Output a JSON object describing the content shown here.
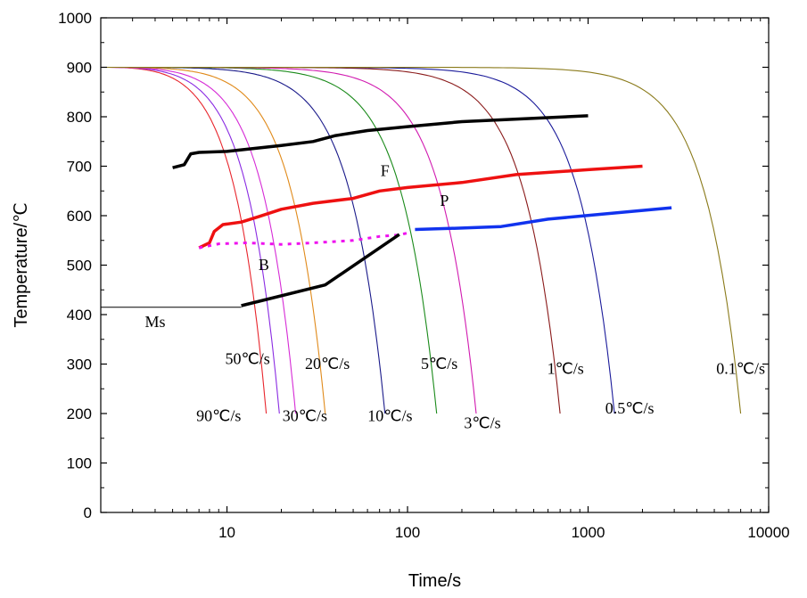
{
  "chart_data": {
    "type": "line",
    "xlabel": "Time/s",
    "ylabel": "Temperature/℃",
    "xscale": "log",
    "xlim": [
      2,
      10000
    ],
    "ylim": [
      0,
      1000
    ],
    "x_ticks": [
      10,
      100,
      1000,
      10000
    ],
    "x_tick_labels": [
      "10",
      "100",
      "1000",
      "10000"
    ],
    "y_ticks": [
      0,
      100,
      200,
      300,
      400,
      500,
      600,
      700,
      800,
      900,
      1000
    ],
    "y_tick_labels": [
      "0",
      "100",
      "200",
      "300",
      "400",
      "500",
      "600",
      "700",
      "800",
      "900",
      "1000"
    ],
    "grid": false,
    "cooling_curves": [
      {
        "name": "90℃/s",
        "color": "#e8262d",
        "end_x": 16.5,
        "end_y": 200
      },
      {
        "name": "50℃/s",
        "color": "#8a2be2",
        "end_x": 19.5,
        "end_y": 200
      },
      {
        "name": "30℃/s",
        "color": "#d62bd6",
        "end_x": 24,
        "end_y": 200
      },
      {
        "name": "20℃/s",
        "color": "#e08a1a",
        "end_x": 35,
        "end_y": 200
      },
      {
        "name": "10℃/s",
        "color": "#1a1a8a",
        "end_x": 75,
        "end_y": 200
      },
      {
        "name": "5℃/s",
        "color": "#1a8a1a",
        "end_x": 145,
        "end_y": 200
      },
      {
        "name": "3℃/s",
        "color": "#d11ab0",
        "end_x": 240,
        "end_y": 200
      },
      {
        "name": "1℃/s",
        "color": "#8a1a1a",
        "end_x": 700,
        "end_y": 200
      },
      {
        "name": "0.5℃/s",
        "color": "#1a1a9a",
        "end_x": 1400,
        "end_y": 200
      },
      {
        "name": "0.1℃/s",
        "color": "#8a7a1a",
        "end_x": 7000,
        "end_y": 200
      }
    ],
    "transformation_lines": [
      {
        "id": "ferrite-start",
        "color": "#000000",
        "width": 3.5,
        "dash": "",
        "points": [
          [
            5,
            697
          ],
          [
            5.8,
            703
          ],
          [
            6.3,
            725
          ],
          [
            7,
            728
          ],
          [
            10,
            730
          ],
          [
            20,
            742
          ],
          [
            30,
            750
          ],
          [
            40,
            762
          ],
          [
            60,
            772
          ],
          [
            100,
            780
          ],
          [
            200,
            790
          ],
          [
            500,
            797
          ],
          [
            1000,
            802
          ]
        ]
      },
      {
        "id": "pearlite-start",
        "color": "#ee1111",
        "width": 3.5,
        "dash": "",
        "points": [
          [
            7,
            535
          ],
          [
            8,
            545
          ],
          [
            8.5,
            568
          ],
          [
            9.5,
            582
          ],
          [
            12,
            587
          ],
          [
            15,
            598
          ],
          [
            20,
            613
          ],
          [
            30,
            625
          ],
          [
            50,
            635
          ],
          [
            70,
            650
          ],
          [
            100,
            657
          ],
          [
            200,
            667
          ],
          [
            400,
            683
          ],
          [
            1000,
            693
          ],
          [
            2000,
            700
          ]
        ]
      },
      {
        "id": "bainite-start",
        "color": "#ee11ee",
        "width": 3,
        "dash": "4 6",
        "points": [
          [
            7,
            535
          ],
          [
            9,
            543
          ],
          [
            13,
            545
          ],
          [
            20,
            542
          ],
          [
            30,
            545
          ],
          [
            50,
            550
          ],
          [
            70,
            558
          ],
          [
            90,
            561
          ],
          [
            100,
            565
          ]
        ]
      },
      {
        "id": "pearlite-finish",
        "color": "#1133ee",
        "width": 3.5,
        "dash": "",
        "points": [
          [
            110,
            572
          ],
          [
            200,
            575
          ],
          [
            330,
            578
          ],
          [
            600,
            593
          ],
          [
            1200,
            603
          ],
          [
            2900,
            616
          ]
        ]
      },
      {
        "id": "bainite-finish",
        "color": "#000000",
        "width": 3.5,
        "dash": "",
        "points": [
          [
            12,
            418
          ],
          [
            35,
            460
          ],
          [
            90,
            562
          ]
        ]
      },
      {
        "id": "ms-line",
        "color": "#000000",
        "width": 1,
        "dash": "",
        "points": [
          [
            2,
            415
          ],
          [
            12,
            415
          ]
        ]
      }
    ],
    "annotations": [
      {
        "text": "F",
        "x": 75,
        "y": 680
      },
      {
        "text": "P",
        "x": 160,
        "y": 620
      },
      {
        "text": "B",
        "x": 16,
        "y": 490
      },
      {
        "text": "Ms",
        "x": 4,
        "y": 375
      },
      {
        "text": "90℃/s",
        "x": 9,
        "y": 185
      },
      {
        "text": "50℃/s",
        "x": 13,
        "y": 300
      },
      {
        "text": "30℃/s",
        "x": 27,
        "y": 185
      },
      {
        "text": "20℃/s",
        "x": 36,
        "y": 290
      },
      {
        "text": "10℃/s",
        "x": 80,
        "y": 185
      },
      {
        "text": "5℃/s",
        "x": 150,
        "y": 290
      },
      {
        "text": "3℃/s",
        "x": 260,
        "y": 170
      },
      {
        "text": "1℃/s",
        "x": 750,
        "y": 280
      },
      {
        "text": "0.5℃/s",
        "x": 1700,
        "y": 200
      },
      {
        "text": "0.1℃/s",
        "x": 7000,
        "y": 280
      }
    ]
  }
}
